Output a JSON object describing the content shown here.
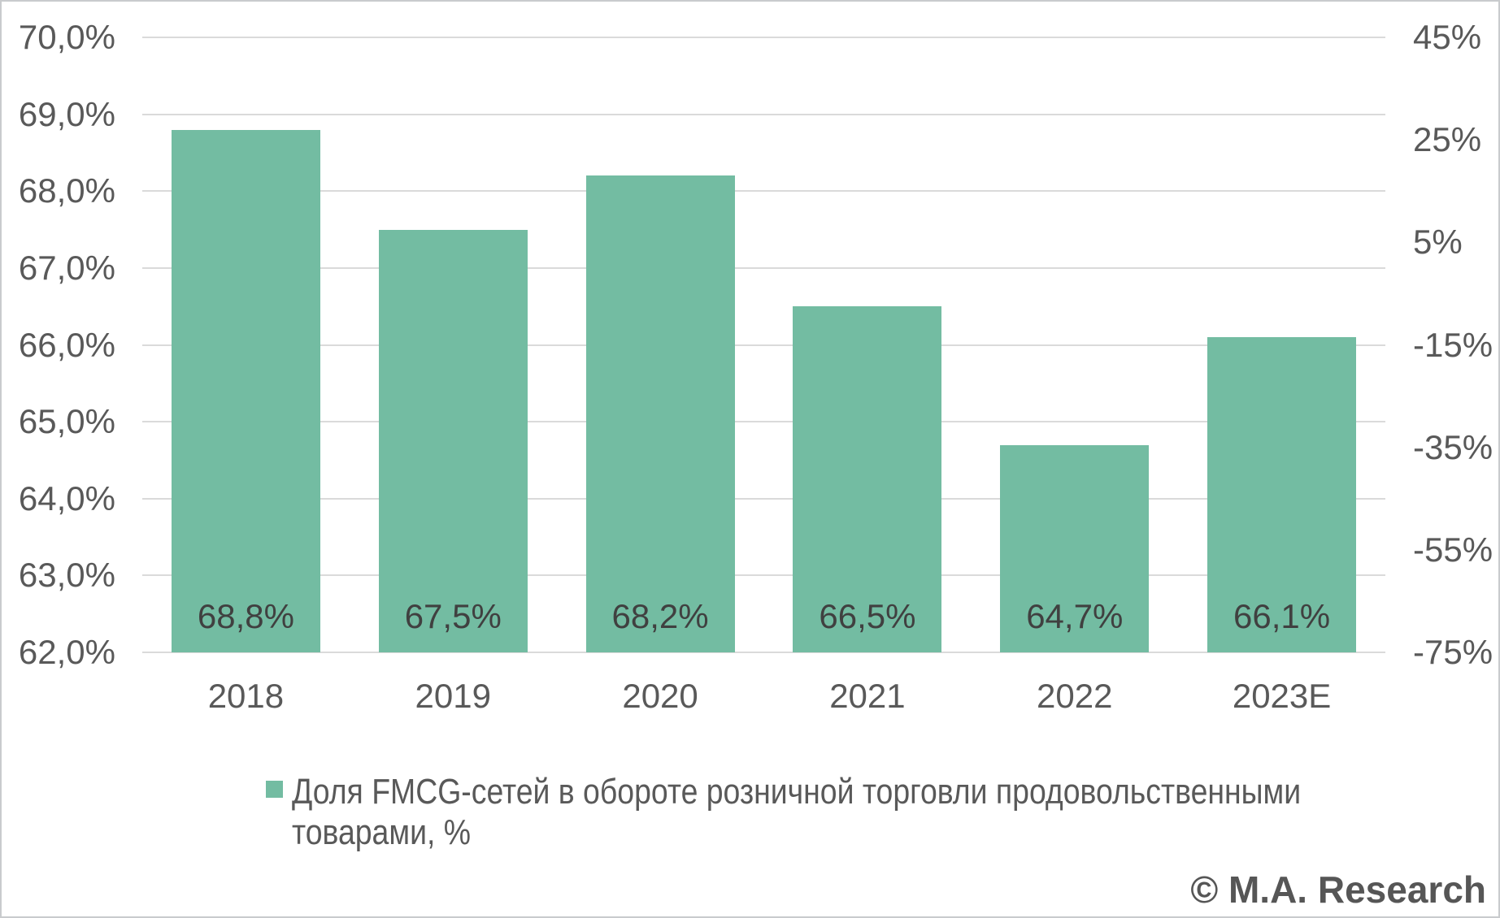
{
  "chart_data": {
    "type": "bar",
    "categories": [
      "2018",
      "2019",
      "2020",
      "2021",
      "2022",
      "2023E"
    ],
    "values": [
      68.8,
      67.5,
      68.2,
      66.5,
      64.7,
      66.1
    ],
    "bar_labels": [
      "68,8%",
      "67,5%",
      "68,2%",
      "66,5%",
      "64,7%",
      "66,1%"
    ],
    "left_axis": {
      "min": 62,
      "max": 70,
      "tick_labels": [
        "70,0%",
        "69,0%",
        "68,0%",
        "67,0%",
        "66,0%",
        "65,0%",
        "64,0%",
        "63,0%",
        "62,0%"
      ]
    },
    "right_axis": {
      "min": -75,
      "max": 45,
      "tick_labels": [
        "45%",
        "25%",
        "5%",
        "-15%",
        "-35%",
        "-55%",
        "-75%"
      ]
    },
    "legend": "Доля FMCG-сетей в обороте розничной торговли продовольственными товарами, %",
    "grid": "horizontal",
    "legend_position": "bottom",
    "bar_color": "#73bca2",
    "gridline_color": "#dadada",
    "title": "",
    "xlabel": "",
    "ylabel": ""
  },
  "legend": {
    "lines": [
      "Доля FMCG-сетей в обороте розничной торговли продовольственными",
      "товарами, %"
    ]
  },
  "watermark": "© M.A. Research"
}
